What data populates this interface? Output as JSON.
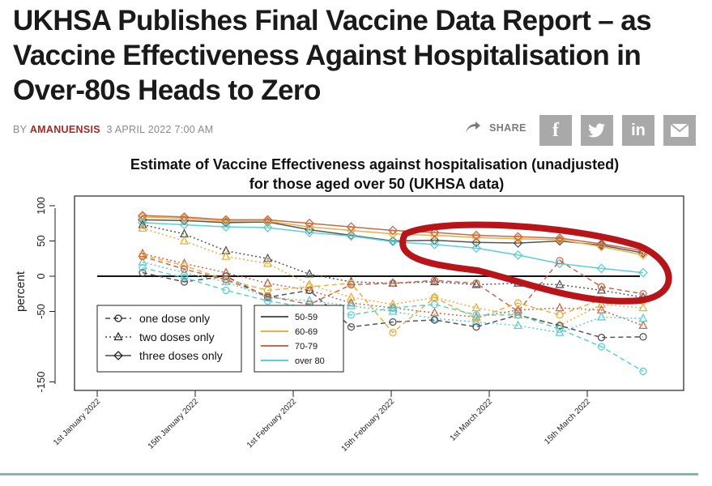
{
  "article": {
    "headline": "UKHSA Publishes Final Vaccine Data Report – as Vaccine Effectiveness Against Hospitalisation in Over-80s Heads to Zero",
    "byline_prefix": "BY",
    "author": "AMANUENSIS",
    "date": "3 APRIL 2022 7:00 AM",
    "share_label": "SHARE"
  },
  "social": {
    "facebook": "facebook-icon",
    "twitter": "twitter-icon",
    "linkedin": "linkedin-icon",
    "email": "email-icon"
  },
  "colors": {
    "band_50_59": "#555555",
    "band_60_69": "#e8b040",
    "band_70_79": "#c86a4a",
    "band_over80": "#5ccfd6",
    "highlight": "#b8151b",
    "share_button": "#a9a9a9",
    "author": "#a32b23"
  },
  "chart_data": {
    "type": "line",
    "title": "Estimate of Vaccine Effectiveness against hospitalisation (unadjusted) for those aged over 50 (UKHSA data)",
    "ylabel": "percent",
    "ylim": [
      -150,
      100
    ],
    "yticks": [
      100,
      50,
      0,
      -50,
      -150
    ],
    "x_tick_labels": [
      "1st January 2022",
      "15th January 2022",
      "1st February 2022",
      "15th February 2022",
      "1st March 2022",
      "15th March 2022"
    ],
    "legend_doses": [
      "one dose only",
      "two doses only",
      "three doses only"
    ],
    "legend_bands": [
      "50-59",
      "60-69",
      "70-79",
      "over 80"
    ],
    "series": [
      {
        "name": "50-59",
        "dose": "three doses only",
        "values": [
          80,
          79,
          76,
          77,
          66,
          58,
          50,
          51,
          48,
          47,
          50,
          44,
          33
        ]
      },
      {
        "name": "60-69",
        "dose": "three doses only",
        "values": [
          84,
          82,
          78,
          78,
          70,
          65,
          60,
          58,
          55,
          53,
          52,
          42,
          30
        ]
      },
      {
        "name": "70-79",
        "dose": "three doses only",
        "values": [
          86,
          84,
          80,
          80,
          75,
          70,
          65,
          62,
          58,
          56,
          54,
          46,
          36
        ]
      },
      {
        "name": "over 80",
        "dose": "three doses only",
        "values": [
          76,
          73,
          70,
          69,
          62,
          57,
          49,
          45,
          40,
          30,
          18,
          11,
          5
        ]
      },
      {
        "name": "50-59",
        "dose": "two doses only",
        "values": [
          73,
          60,
          36,
          25,
          3,
          -8,
          -10,
          -8,
          -12,
          -10,
          -12,
          -20,
          -30
        ]
      },
      {
        "name": "60-69",
        "dose": "two doses only",
        "values": [
          68,
          50,
          28,
          18,
          -12,
          -30,
          -40,
          -30,
          -45,
          -55,
          -70,
          -40,
          -45
        ]
      },
      {
        "name": "70-79",
        "dose": "two doses only",
        "values": [
          32,
          18,
          5,
          -10,
          -20,
          -38,
          -45,
          -52,
          -58,
          -48,
          -45,
          -48,
          -70
        ]
      },
      {
        "name": "over 80",
        "dose": "two doses only",
        "values": [
          20,
          5,
          -8,
          -30,
          -35,
          -42,
          -50,
          -60,
          -65,
          -70,
          -80,
          -58,
          -60
        ]
      },
      {
        "name": "50-59",
        "dose": "one dose only",
        "values": [
          5,
          -8,
          0,
          -30,
          -20,
          -72,
          -65,
          -62,
          -72,
          -55,
          -70,
          -87,
          -86
        ]
      },
      {
        "name": "60-69",
        "dose": "one dose only",
        "values": [
          30,
          15,
          -5,
          -20,
          -15,
          -10,
          -80,
          -30,
          -60,
          -38,
          -55,
          -33,
          -35
        ]
      },
      {
        "name": "70-79",
        "dose": "one dose only",
        "values": [
          28,
          10,
          -5,
          -28,
          -40,
          -12,
          -10,
          -6,
          -10,
          -50,
          22,
          -15,
          -25
        ]
      },
      {
        "name": "over 80",
        "dose": "one dose only",
        "values": [
          12,
          -2,
          -20,
          -35,
          -45,
          -55,
          -45,
          -40,
          -55,
          -55,
          -75,
          -100,
          -135
        ]
      }
    ]
  }
}
